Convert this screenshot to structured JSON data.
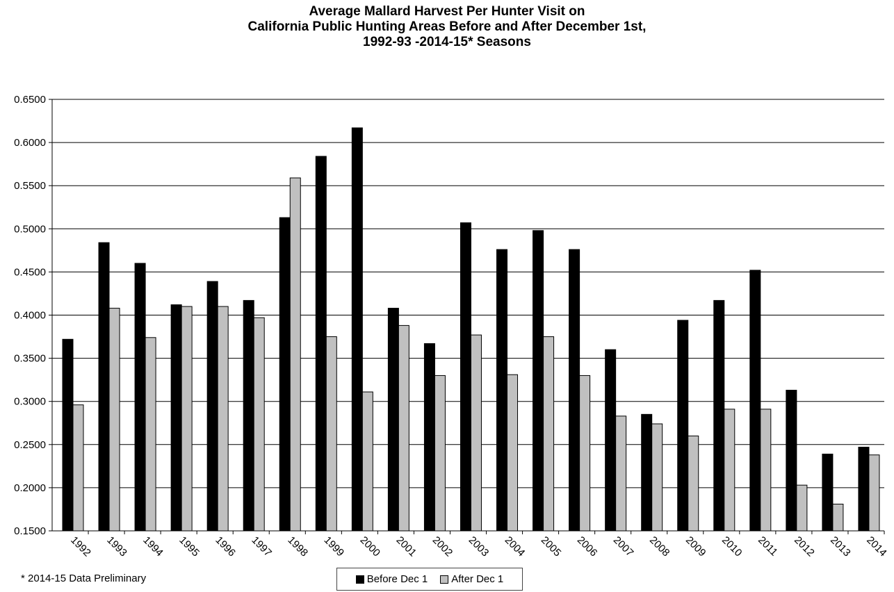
{
  "chart_data": {
    "type": "bar",
    "title_lines": [
      "Average Mallard Harvest Per Hunter Visit on",
      "California Public Hunting Areas Before and After December 1st,",
      "1992-93 -2014-15* Seasons"
    ],
    "xlabel": "",
    "ylabel": "",
    "ylim": [
      0.15,
      0.65
    ],
    "yticks": [
      "0.1500",
      "0.2000",
      "0.2500",
      "0.3000",
      "0.3500",
      "0.4000",
      "0.4500",
      "0.5000",
      "0.5500",
      "0.6000",
      "0.6500"
    ],
    "ytick_values": [
      0.15,
      0.2,
      0.25,
      0.3,
      0.35,
      0.4,
      0.45,
      0.5,
      0.55,
      0.6,
      0.65
    ],
    "grid": true,
    "legend_position": "bottom",
    "categories": [
      "1992",
      "1993",
      "1994",
      "1995",
      "1996",
      "1997",
      "1998",
      "1999",
      "2000",
      "2001",
      "2002",
      "2003",
      "2004",
      "2005",
      "2006",
      "2007",
      "2008",
      "2009",
      "2010",
      "2011",
      "2012",
      "2013",
      "2014"
    ],
    "series": [
      {
        "name": "Before Dec 1",
        "color": "#000000",
        "values": [
          0.372,
          0.484,
          0.46,
          0.412,
          0.439,
          0.417,
          0.513,
          0.584,
          0.617,
          0.408,
          0.367,
          0.507,
          0.476,
          0.498,
          0.476,
          0.36,
          0.285,
          0.394,
          0.417,
          0.452,
          0.313,
          0.239,
          0.247
        ]
      },
      {
        "name": "After Dec 1",
        "color": "#c0c0c0",
        "values": [
          0.296,
          0.408,
          0.374,
          0.41,
          0.41,
          0.397,
          0.559,
          0.375,
          0.311,
          0.388,
          0.33,
          0.377,
          0.331,
          0.375,
          0.33,
          0.283,
          0.274,
          0.26,
          0.291,
          0.291,
          0.203,
          0.181,
          0.238
        ]
      }
    ],
    "footnote": "* 2014-15 Data Preliminary"
  }
}
